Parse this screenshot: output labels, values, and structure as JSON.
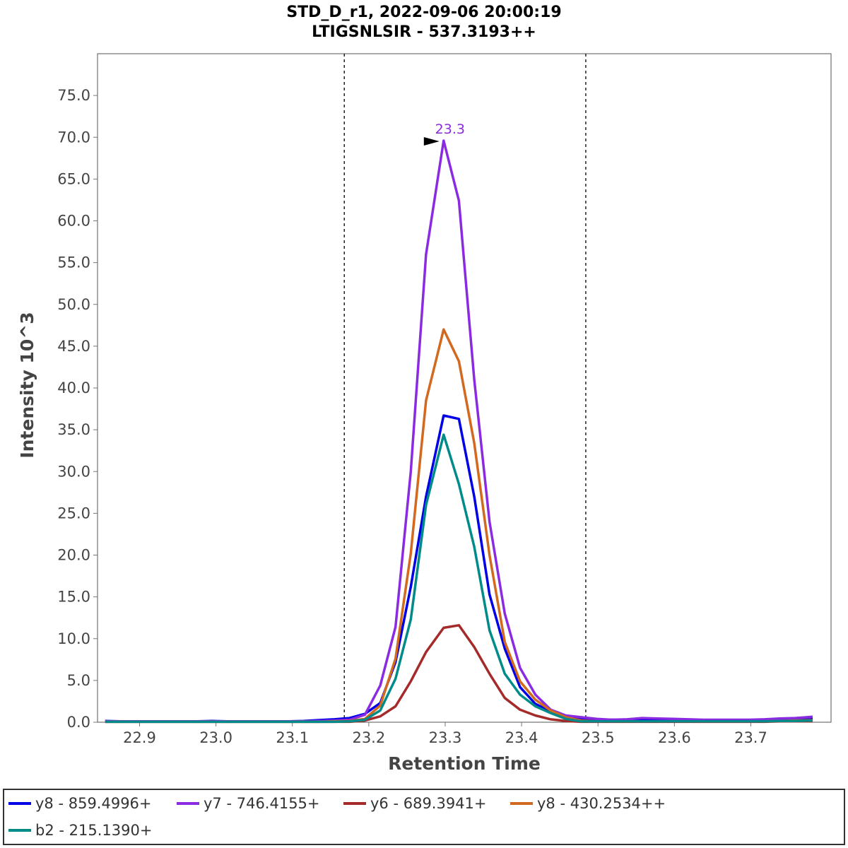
{
  "chart_data": {
    "type": "line",
    "title": "STD_D_r1, 2022-09-06 20:00:19",
    "subtitle": "LTIGSNLSIR - 537.3193++",
    "xlabel": "Retention Time",
    "ylabel": "Intensity 10^3",
    "xlim": [
      22.845,
      23.805
    ],
    "ylim": [
      0,
      80
    ],
    "xticks": [
      "22.9",
      "23.0",
      "23.1",
      "23.2",
      "23.3",
      "23.4",
      "23.5",
      "23.6",
      "23.7"
    ],
    "yticks": [
      "0.0",
      "5.0",
      "10.0",
      "15.0",
      "20.0",
      "25.0",
      "30.0",
      "35.0",
      "40.0",
      "45.0",
      "50.0",
      "55.0",
      "60.0",
      "65.0",
      "70.0",
      "75.0"
    ],
    "boundaries": [
      23.168,
      23.484
    ],
    "peak_annotation": {
      "label": "23.3",
      "x": 23.298,
      "y": 69.6,
      "color": "#8a2be2"
    },
    "legend_position": "bottom",
    "x": [
      22.855,
      22.875,
      22.895,
      22.915,
      22.935,
      22.955,
      22.975,
      22.995,
      23.015,
      23.035,
      23.055,
      23.075,
      23.095,
      23.115,
      23.135,
      23.155,
      23.175,
      23.195,
      23.215,
      23.235,
      23.255,
      23.275,
      23.298,
      23.318,
      23.338,
      23.358,
      23.378,
      23.398,
      23.418,
      23.438,
      23.458,
      23.478,
      23.498,
      23.518,
      23.538,
      23.558,
      23.578,
      23.598,
      23.618,
      23.638,
      23.658,
      23.678,
      23.698,
      23.718,
      23.738,
      23.758,
      23.781
    ],
    "series": [
      {
        "name": "y8 - 859.4996+",
        "color": "#0000e6",
        "values": [
          0.15,
          0.1,
          0.1,
          0.1,
          0.1,
          0.1,
          0.1,
          0.15,
          0.1,
          0.1,
          0.1,
          0.1,
          0.1,
          0.15,
          0.25,
          0.35,
          0.5,
          1.0,
          2.3,
          7.2,
          16.2,
          27.0,
          36.7,
          36.3,
          27.0,
          15.3,
          8.8,
          4.2,
          2.2,
          1.3,
          0.6,
          0.4,
          0.3,
          0.3,
          0.3,
          0.3,
          0.3,
          0.3,
          0.3,
          0.25,
          0.25,
          0.25,
          0.25,
          0.3,
          0.35,
          0.4,
          0.5
        ]
      },
      {
        "name": "y7 - 746.4155+",
        "color": "#8a2be2",
        "values": [
          0.1,
          0.1,
          0.1,
          0.1,
          0.1,
          0.1,
          0.1,
          0.1,
          0.1,
          0.1,
          0.1,
          0.1,
          0.1,
          0.1,
          0.15,
          0.2,
          0.3,
          0.9,
          4.4,
          11.4,
          30.0,
          56.0,
          69.6,
          62.4,
          41.0,
          24.0,
          13.0,
          6.5,
          3.3,
          1.5,
          0.8,
          0.6,
          0.4,
          0.3,
          0.35,
          0.5,
          0.45,
          0.4,
          0.35,
          0.3,
          0.3,
          0.3,
          0.3,
          0.35,
          0.45,
          0.5,
          0.65
        ]
      },
      {
        "name": "y6 - 689.3941+",
        "color": "#a52a2a",
        "values": [
          0.05,
          0.05,
          0.05,
          0.05,
          0.05,
          0.05,
          0.05,
          0.05,
          0.05,
          0.05,
          0.05,
          0.05,
          0.05,
          0.05,
          0.05,
          0.05,
          0.05,
          0.2,
          0.7,
          1.9,
          4.9,
          8.4,
          11.3,
          11.6,
          9.0,
          5.8,
          2.9,
          1.5,
          0.8,
          0.35,
          0.15,
          0.05,
          0.05,
          0.05,
          0.05,
          0.05,
          0.05,
          0.05,
          0.05,
          0.05,
          0.05,
          0.05,
          0.05,
          0.05,
          0.1,
          0.1,
          0.1
        ]
      },
      {
        "name": "y8 - 430.2534++",
        "color": "#d2691e",
        "values": [
          0.05,
          0.05,
          0.05,
          0.05,
          0.05,
          0.05,
          0.05,
          0.05,
          0.05,
          0.05,
          0.05,
          0.05,
          0.05,
          0.05,
          0.05,
          0.1,
          0.15,
          0.4,
          2.0,
          7.6,
          20.2,
          38.5,
          47.0,
          43.2,
          33.4,
          20.0,
          9.6,
          4.9,
          2.7,
          1.4,
          0.6,
          0.2,
          0.1,
          0.1,
          0.1,
          0.1,
          0.1,
          0.1,
          0.1,
          0.1,
          0.1,
          0.1,
          0.1,
          0.1,
          0.15,
          0.2,
          0.25
        ]
      },
      {
        "name": "b2 - 215.1390+",
        "color": "#008b8b",
        "values": [
          0.05,
          0.05,
          0.05,
          0.05,
          0.05,
          0.05,
          0.05,
          0.05,
          0.05,
          0.05,
          0.05,
          0.05,
          0.05,
          0.05,
          0.05,
          0.05,
          0.1,
          0.3,
          1.4,
          5.2,
          12.3,
          26.0,
          34.4,
          28.5,
          21.0,
          11.0,
          5.8,
          3.3,
          1.9,
          1.1,
          0.4,
          0.1,
          0.1,
          0.1,
          0.1,
          0.1,
          0.1,
          0.1,
          0.1,
          0.1,
          0.1,
          0.1,
          0.1,
          0.1,
          0.15,
          0.15,
          0.2
        ]
      }
    ]
  }
}
